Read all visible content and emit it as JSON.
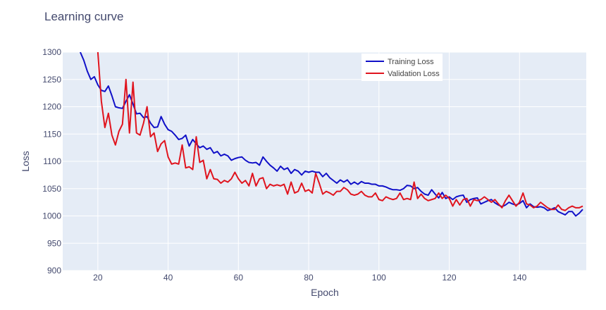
{
  "colors": {
    "plot_bg": "#e5ecf6",
    "grid": "#ffffff",
    "training": "#1010c8",
    "validation": "#e0141e"
  },
  "chart_data": {
    "type": "line",
    "title": "Learning curve",
    "xlabel": "Epoch",
    "ylabel": "Loss",
    "xlim": [
      10,
      159
    ],
    "ylim": [
      900,
      1300
    ],
    "x_ticks": [
      20,
      40,
      60,
      80,
      100,
      120,
      140
    ],
    "y_ticks": [
      900,
      950,
      1000,
      1050,
      1100,
      1150,
      1200,
      1250,
      1300
    ],
    "grid": true,
    "legend_position": "top-right",
    "series": [
      {
        "name": "Training Loss",
        "color": "#1010c8",
        "points": [
          [
            15,
            1300
          ],
          [
            16,
            1285
          ],
          [
            17,
            1265
          ],
          [
            18,
            1250
          ],
          [
            19,
            1255
          ],
          [
            20,
            1240
          ],
          [
            21,
            1230
          ],
          [
            22,
            1228
          ],
          [
            23,
            1238
          ],
          [
            24,
            1220
          ],
          [
            25,
            1200
          ],
          [
            26,
            1198
          ],
          [
            27,
            1197
          ],
          [
            28,
            1210
          ],
          [
            29,
            1222
          ],
          [
            30,
            1205
          ],
          [
            31,
            1187
          ],
          [
            32,
            1188
          ],
          [
            33,
            1180
          ],
          [
            34,
            1182
          ],
          [
            35,
            1170
          ],
          [
            36,
            1162
          ],
          [
            37,
            1163
          ],
          [
            38,
            1182
          ],
          [
            39,
            1168
          ],
          [
            40,
            1158
          ],
          [
            41,
            1155
          ],
          [
            42,
            1148
          ],
          [
            43,
            1140
          ],
          [
            44,
            1142
          ],
          [
            45,
            1148
          ],
          [
            46,
            1128
          ],
          [
            47,
            1140
          ],
          [
            48,
            1132
          ],
          [
            49,
            1125
          ],
          [
            50,
            1128
          ],
          [
            51,
            1122
          ],
          [
            52,
            1125
          ],
          [
            53,
            1115
          ],
          [
            54,
            1118
          ],
          [
            55,
            1110
          ],
          [
            56,
            1113
          ],
          [
            57,
            1110
          ],
          [
            58,
            1102
          ],
          [
            59,
            1105
          ],
          [
            60,
            1107
          ],
          [
            61,
            1108
          ],
          [
            62,
            1102
          ],
          [
            63,
            1098
          ],
          [
            64,
            1097
          ],
          [
            65,
            1098
          ],
          [
            66,
            1093
          ],
          [
            67,
            1108
          ],
          [
            68,
            1100
          ],
          [
            69,
            1093
          ],
          [
            70,
            1088
          ],
          [
            71,
            1082
          ],
          [
            72,
            1091
          ],
          [
            73,
            1085
          ],
          [
            74,
            1088
          ],
          [
            75,
            1078
          ],
          [
            76,
            1085
          ],
          [
            77,
            1082
          ],
          [
            78,
            1075
          ],
          [
            79,
            1082
          ],
          [
            80,
            1080
          ],
          [
            81,
            1082
          ],
          [
            82,
            1080
          ],
          [
            83,
            1080
          ],
          [
            84,
            1072
          ],
          [
            85,
            1078
          ],
          [
            86,
            1070
          ],
          [
            87,
            1065
          ],
          [
            88,
            1060
          ],
          [
            89,
            1066
          ],
          [
            90,
            1062
          ],
          [
            91,
            1066
          ],
          [
            92,
            1058
          ],
          [
            93,
            1062
          ],
          [
            94,
            1058
          ],
          [
            95,
            1063
          ],
          [
            96,
            1060
          ],
          [
            97,
            1060
          ],
          [
            98,
            1058
          ],
          [
            99,
            1058
          ],
          [
            100,
            1055
          ],
          [
            101,
            1055
          ],
          [
            102,
            1053
          ],
          [
            103,
            1050
          ],
          [
            104,
            1048
          ],
          [
            105,
            1048
          ],
          [
            106,
            1047
          ],
          [
            107,
            1050
          ],
          [
            108,
            1056
          ],
          [
            109,
            1055
          ],
          [
            110,
            1050
          ],
          [
            111,
            1052
          ],
          [
            112,
            1045
          ],
          [
            113,
            1040
          ],
          [
            114,
            1038
          ],
          [
            115,
            1048
          ],
          [
            116,
            1040
          ],
          [
            117,
            1033
          ],
          [
            118,
            1043
          ],
          [
            119,
            1032
          ],
          [
            120,
            1035
          ],
          [
            121,
            1030
          ],
          [
            122,
            1035
          ],
          [
            123,
            1037
          ],
          [
            124,
            1038
          ],
          [
            125,
            1025
          ],
          [
            126,
            1030
          ],
          [
            127,
            1032
          ],
          [
            128,
            1033
          ],
          [
            129,
            1022
          ],
          [
            130,
            1025
          ],
          [
            131,
            1028
          ],
          [
            132,
            1030
          ],
          [
            133,
            1024
          ],
          [
            134,
            1020
          ],
          [
            135,
            1017
          ],
          [
            136,
            1020
          ],
          [
            137,
            1025
          ],
          [
            138,
            1022
          ],
          [
            139,
            1020
          ],
          [
            140,
            1023
          ],
          [
            141,
            1028
          ],
          [
            142,
            1015
          ],
          [
            143,
            1022
          ],
          [
            144,
            1017
          ],
          [
            145,
            1016
          ],
          [
            146,
            1017
          ],
          [
            147,
            1015
          ],
          [
            148,
            1010
          ],
          [
            149,
            1012
          ],
          [
            150,
            1015
          ],
          [
            151,
            1008
          ],
          [
            152,
            1005
          ],
          [
            153,
            1002
          ],
          [
            154,
            1008
          ],
          [
            155,
            1008
          ],
          [
            156,
            1000
          ],
          [
            157,
            1005
          ],
          [
            158,
            1012
          ]
        ]
      },
      {
        "name": "Validation Loss",
        "color": "#e0141e",
        "points": [
          [
            20,
            1300
          ],
          [
            21,
            1210
          ],
          [
            22,
            1162
          ],
          [
            23,
            1188
          ],
          [
            24,
            1148
          ],
          [
            25,
            1130
          ],
          [
            26,
            1155
          ],
          [
            27,
            1168
          ],
          [
            28,
            1250
          ],
          [
            29,
            1152
          ],
          [
            30,
            1245
          ],
          [
            31,
            1152
          ],
          [
            32,
            1148
          ],
          [
            33,
            1170
          ],
          [
            34,
            1200
          ],
          [
            35,
            1145
          ],
          [
            36,
            1152
          ],
          [
            37,
            1118
          ],
          [
            38,
            1132
          ],
          [
            39,
            1138
          ],
          [
            40,
            1108
          ],
          [
            41,
            1095
          ],
          [
            42,
            1097
          ],
          [
            43,
            1095
          ],
          [
            44,
            1130
          ],
          [
            45,
            1088
          ],
          [
            46,
            1090
          ],
          [
            47,
            1085
          ],
          [
            48,
            1145
          ],
          [
            49,
            1098
          ],
          [
            50,
            1102
          ],
          [
            51,
            1068
          ],
          [
            52,
            1085
          ],
          [
            53,
            1068
          ],
          [
            54,
            1067
          ],
          [
            55,
            1060
          ],
          [
            56,
            1065
          ],
          [
            57,
            1062
          ],
          [
            58,
            1068
          ],
          [
            59,
            1080
          ],
          [
            60,
            1068
          ],
          [
            61,
            1060
          ],
          [
            62,
            1065
          ],
          [
            63,
            1055
          ],
          [
            64,
            1078
          ],
          [
            65,
            1055
          ],
          [
            66,
            1068
          ],
          [
            67,
            1070
          ],
          [
            68,
            1050
          ],
          [
            69,
            1058
          ],
          [
            70,
            1055
          ],
          [
            71,
            1057
          ],
          [
            72,
            1055
          ],
          [
            73,
            1058
          ],
          [
            74,
            1040
          ],
          [
            75,
            1062
          ],
          [
            76,
            1042
          ],
          [
            77,
            1045
          ],
          [
            78,
            1060
          ],
          [
            79,
            1045
          ],
          [
            80,
            1048
          ],
          [
            81,
            1042
          ],
          [
            82,
            1078
          ],
          [
            83,
            1060
          ],
          [
            84,
            1040
          ],
          [
            85,
            1045
          ],
          [
            86,
            1042
          ],
          [
            87,
            1038
          ],
          [
            88,
            1045
          ],
          [
            89,
            1045
          ],
          [
            90,
            1052
          ],
          [
            91,
            1048
          ],
          [
            92,
            1040
          ],
          [
            93,
            1038
          ],
          [
            94,
            1040
          ],
          [
            95,
            1045
          ],
          [
            96,
            1038
          ],
          [
            97,
            1035
          ],
          [
            98,
            1035
          ],
          [
            99,
            1042
          ],
          [
            100,
            1030
          ],
          [
            101,
            1028
          ],
          [
            102,
            1035
          ],
          [
            103,
            1032
          ],
          [
            104,
            1030
          ],
          [
            105,
            1032
          ],
          [
            106,
            1042
          ],
          [
            107,
            1030
          ],
          [
            108,
            1032
          ],
          [
            109,
            1030
          ],
          [
            110,
            1062
          ],
          [
            111,
            1032
          ],
          [
            112,
            1040
          ],
          [
            113,
            1032
          ],
          [
            114,
            1028
          ],
          [
            115,
            1030
          ],
          [
            116,
            1032
          ],
          [
            117,
            1042
          ],
          [
            118,
            1032
          ],
          [
            119,
            1038
          ],
          [
            120,
            1032
          ],
          [
            121,
            1018
          ],
          [
            122,
            1030
          ],
          [
            123,
            1020
          ],
          [
            124,
            1030
          ],
          [
            125,
            1032
          ],
          [
            126,
            1018
          ],
          [
            127,
            1030
          ],
          [
            128,
            1028
          ],
          [
            129,
            1030
          ],
          [
            130,
            1035
          ],
          [
            131,
            1030
          ],
          [
            132,
            1025
          ],
          [
            133,
            1030
          ],
          [
            134,
            1022
          ],
          [
            135,
            1015
          ],
          [
            136,
            1028
          ],
          [
            137,
            1038
          ],
          [
            138,
            1028
          ],
          [
            139,
            1018
          ],
          [
            140,
            1025
          ],
          [
            141,
            1042
          ],
          [
            142,
            1022
          ],
          [
            143,
            1020
          ],
          [
            144,
            1015
          ],
          [
            145,
            1018
          ],
          [
            146,
            1025
          ],
          [
            147,
            1020
          ],
          [
            148,
            1015
          ],
          [
            149,
            1012
          ],
          [
            150,
            1012
          ],
          [
            151,
            1020
          ],
          [
            152,
            1012
          ],
          [
            153,
            1010
          ],
          [
            154,
            1015
          ],
          [
            155,
            1018
          ],
          [
            156,
            1015
          ],
          [
            157,
            1015
          ],
          [
            158,
            1018
          ]
        ]
      }
    ]
  }
}
